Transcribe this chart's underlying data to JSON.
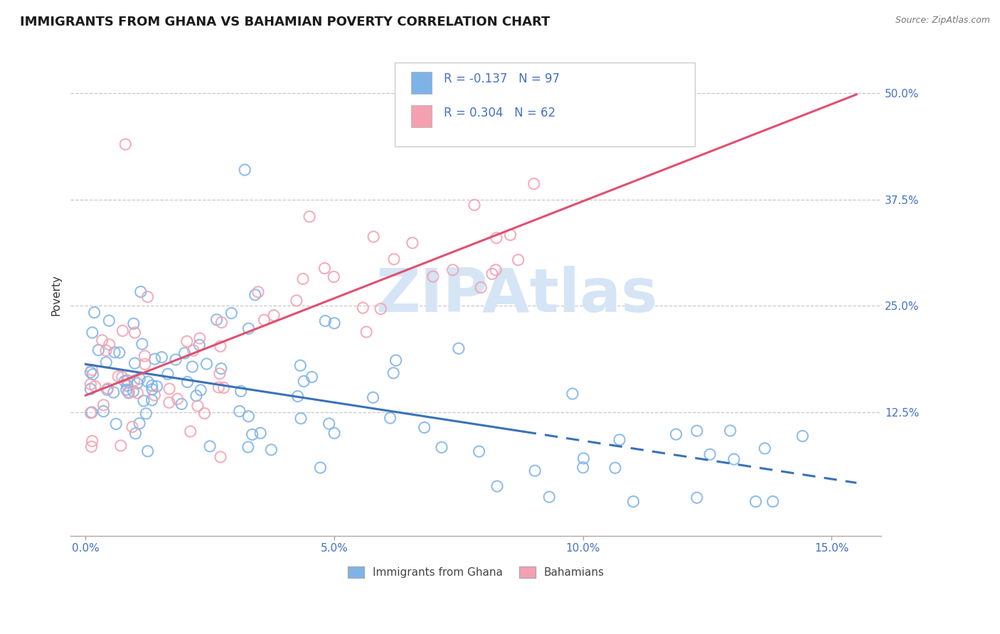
{
  "title": "IMMIGRANTS FROM GHANA VS BAHAMIAN POVERTY CORRELATION CHART",
  "source": "Source: ZipAtlas.com",
  "ylabel": "Poverty",
  "x_ticks": [
    0.0,
    0.05,
    0.1,
    0.15
  ],
  "x_tick_labels": [
    "0.0%",
    "5.0%",
    "10.0%",
    "15.0%"
  ],
  "x_min": -0.003,
  "x_max": 0.16,
  "y_min": -0.02,
  "y_max": 0.545,
  "y_ticks": [
    0.125,
    0.25,
    0.375,
    0.5
  ],
  "y_tick_labels": [
    "12.5%",
    "25.0%",
    "37.5%",
    "50.0%"
  ],
  "legend_label1": "Immigrants from Ghana",
  "legend_label2": "Bahamians",
  "R1": -0.137,
  "N1": 97,
  "R2": 0.304,
  "N2": 62,
  "color_blue": "#7EB3E8",
  "color_pink": "#F4A0B0",
  "color_line_blue": "#3A72B8",
  "color_line_pink": "#E05070",
  "color_text": "#4472C4",
  "color_grid": "#BBBBBB",
  "watermark": "ZIPAtlas",
  "watermark_color": "#D5E5F5",
  "title_fontsize": 13,
  "axis_label_fontsize": 11,
  "tick_fontsize": 11,
  "legend_fontsize": 12
}
